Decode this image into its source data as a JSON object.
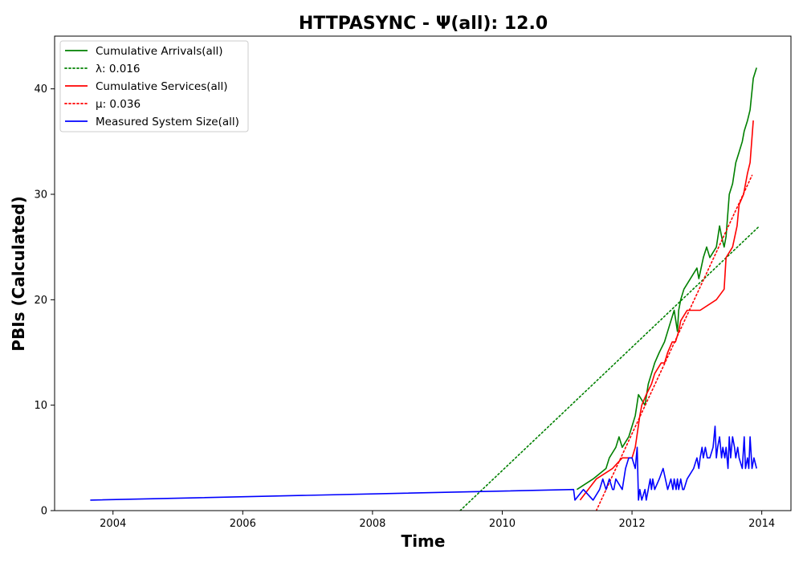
{
  "chart_data": {
    "type": "line",
    "title": "HTTPASYNC -  Ψ(all): 12.0",
    "xlabel": "Time",
    "ylabel": "PBIs (Calculated)",
    "xlim": [
      2003.1,
      2014.45
    ],
    "ylim": [
      0,
      45
    ],
    "xticks": [
      2004,
      2006,
      2008,
      2010,
      2012,
      2014
    ],
    "yticks": [
      0,
      10,
      20,
      30,
      40
    ],
    "grid": false,
    "legend_position": "top-left",
    "series": [
      {
        "name": "Cumulative Arrivals(all)",
        "color": "#008000",
        "style": "solid",
        "x": [
          2011.15,
          2011.4,
          2011.6,
          2011.65,
          2011.75,
          2011.8,
          2011.85,
          2011.95,
          2012.0,
          2012.05,
          2012.1,
          2012.2,
          2012.25,
          2012.3,
          2012.35,
          2012.42,
          2012.5,
          2012.55,
          2012.6,
          2012.65,
          2012.7,
          2012.72,
          2012.75,
          2012.8,
          2012.9,
          2013.0,
          2013.03,
          2013.1,
          2013.15,
          2013.2,
          2013.3,
          2013.35,
          2013.38,
          2013.42,
          2013.45,
          2013.5,
          2013.55,
          2013.6,
          2013.65,
          2013.7,
          2013.73,
          2013.78,
          2013.82,
          2013.87,
          2013.92
        ],
        "y": [
          2,
          3,
          4,
          5,
          6,
          7,
          6,
          7,
          8,
          9,
          11,
          10,
          12,
          13,
          14,
          15,
          16,
          17,
          18,
          19,
          17,
          19,
          20,
          21,
          22,
          23,
          22,
          24,
          25,
          24,
          25,
          27,
          26,
          25,
          26,
          30,
          31,
          33,
          34,
          35,
          36,
          37,
          38,
          41,
          42
        ]
      },
      {
        "name": "λ: 0.016",
        "color": "#008000",
        "style": "dotted",
        "x": [
          2009.35,
          2013.95
        ],
        "y": [
          0,
          26.9
        ]
      },
      {
        "name": "Cumulative Services(all)",
        "color": "#ff0000",
        "style": "solid",
        "x": [
          2011.2,
          2011.45,
          2011.7,
          2011.85,
          2012.0,
          2012.05,
          2012.12,
          2012.15,
          2012.22,
          2012.3,
          2012.35,
          2012.45,
          2012.5,
          2012.55,
          2012.62,
          2012.67,
          2012.72,
          2012.75,
          2012.85,
          2013.05,
          2013.3,
          2013.42,
          2013.45,
          2013.55,
          2013.62,
          2013.65,
          2013.72,
          2013.78,
          2013.82,
          2013.87
        ],
        "y": [
          1,
          3,
          4,
          5,
          5,
          6,
          9,
          10,
          11,
          12,
          13,
          14,
          14,
          15,
          16,
          16,
          17,
          18,
          19,
          19,
          20,
          21,
          24,
          25,
          27,
          29,
          30,
          32,
          33,
          37
        ]
      },
      {
        "name": "μ: 0.036",
        "color": "#ff0000",
        "style": "dotted",
        "x": [
          2011.45,
          2013.85
        ],
        "y": [
          0,
          31.8
        ]
      },
      {
        "name": "Measured System Size(all)",
        "color": "#0000ff",
        "style": "solid",
        "x": [
          2003.65,
          2011.1,
          2011.12,
          2011.25,
          2011.4,
          2011.5,
          2011.55,
          2011.6,
          2011.65,
          2011.7,
          2011.72,
          2011.75,
          2011.85,
          2011.9,
          2011.95,
          2012.0,
          2012.05,
          2012.08,
          2012.1,
          2012.12,
          2012.15,
          2012.2,
          2012.22,
          2012.25,
          2012.28,
          2012.3,
          2012.32,
          2012.35,
          2012.42,
          2012.48,
          2012.55,
          2012.6,
          2012.63,
          2012.65,
          2012.68,
          2012.7,
          2012.72,
          2012.75,
          2012.78,
          2012.8,
          2012.85,
          2012.95,
          2013.0,
          2013.03,
          2013.05,
          2013.08,
          2013.1,
          2013.13,
          2013.16,
          2013.2,
          2013.25,
          2013.28,
          2013.3,
          2013.32,
          2013.35,
          2013.38,
          2013.4,
          2013.43,
          2013.45,
          2013.48,
          2013.5,
          2013.52,
          2013.55,
          2013.58,
          2013.6,
          2013.63,
          2013.65,
          2013.7,
          2013.73,
          2013.75,
          2013.78,
          2013.8,
          2013.82,
          2013.85,
          2013.88,
          2013.92
        ],
        "y": [
          1,
          2,
          1,
          2,
          1,
          2,
          3,
          2,
          3,
          2,
          2,
          3,
          2,
          4,
          5,
          5,
          4,
          6,
          1,
          2,
          1,
          2,
          1,
          2,
          3,
          2,
          3,
          2,
          3,
          4,
          2,
          3,
          2,
          3,
          2,
          3,
          2,
          3,
          2,
          2,
          3,
          4,
          5,
          4,
          5,
          6,
          5,
          6,
          5,
          5,
          6,
          8,
          5,
          6,
          7,
          5,
          6,
          5,
          6,
          4,
          7,
          5,
          7,
          6,
          5,
          6,
          5,
          4,
          7,
          4,
          5,
          4,
          7,
          4,
          5,
          4
        ]
      }
    ]
  }
}
